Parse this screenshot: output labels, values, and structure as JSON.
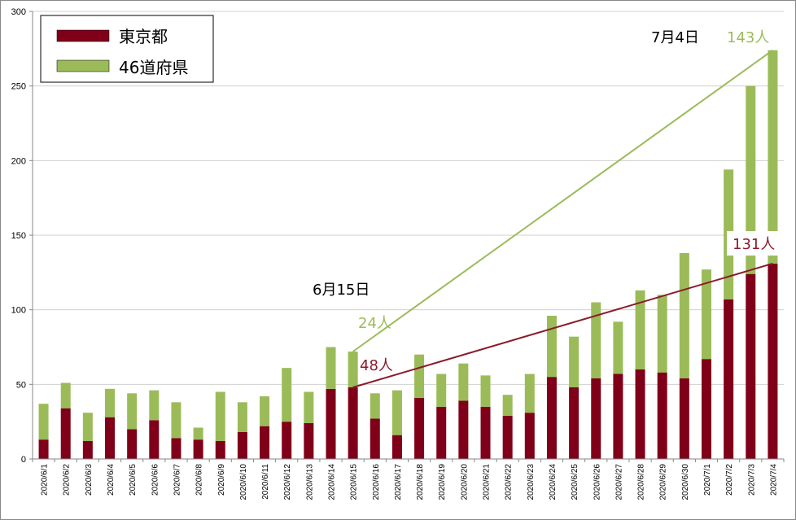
{
  "chart_data": {
    "type": "bar",
    "stacked": true,
    "title": "",
    "xlabel": "",
    "ylabel": "",
    "ylim": [
      0,
      300
    ],
    "yticks": [
      0,
      50,
      100,
      150,
      200,
      250,
      300
    ],
    "grid": "horizontal",
    "legend_position": "top-left",
    "categories": [
      "2020/6/1",
      "2020/6/2",
      "2020/6/3",
      "2020/6/4",
      "2020/6/5",
      "2020/6/6",
      "2020/6/7",
      "2020/6/8",
      "2020/6/9",
      "2020/6/10",
      "2020/6/11",
      "2020/6/12",
      "2020/6/13",
      "2020/6/14",
      "2020/6/15",
      "2020/6/16",
      "2020/6/17",
      "2020/6/18",
      "2020/6/19",
      "2020/6/20",
      "2020/6/21",
      "2020/6/22",
      "2020/6/23",
      "2020/6/24",
      "2020/6/25",
      "2020/6/26",
      "2020/6/27",
      "2020/6/28",
      "2020/6/29",
      "2020/6/30",
      "2020/7/1",
      "2020/7/2",
      "2020/7/3",
      "2020/7/4"
    ],
    "series": [
      {
        "name": "東京都",
        "color": "#7f0018",
        "values": [
          13,
          34,
          12,
          28,
          20,
          26,
          14,
          13,
          12,
          18,
          22,
          25,
          24,
          47,
          48,
          27,
          16,
          41,
          35,
          39,
          35,
          29,
          31,
          55,
          48,
          54,
          57,
          60,
          58,
          54,
          67,
          107,
          124,
          131
        ]
      },
      {
        "name": "46道府県",
        "color": "#9bbb59",
        "values": [
          24,
          17,
          19,
          19,
          24,
          20,
          24,
          8,
          33,
          20,
          20,
          36,
          21,
          28,
          24,
          17,
          30,
          29,
          22,
          25,
          21,
          14,
          26,
          41,
          34,
          51,
          35,
          53,
          52,
          84,
          60,
          87,
          126,
          143
        ]
      }
    ],
    "trend_lines": [
      {
        "series": "東京都",
        "color": "#8b1a2b",
        "from": {
          "x": "2020/6/15",
          "y": 48
        },
        "to": {
          "x": "2020/7/4",
          "y": 131
        }
      },
      {
        "series": "46道府県",
        "color": "#9bbb59",
        "from": {
          "x": "2020/6/15",
          "y": 72
        },
        "to": {
          "x": "2020/7/4",
          "y": 274
        }
      }
    ],
    "annotations": [
      {
        "id": "date-start",
        "text": "6月15日",
        "color": "#000000"
      },
      {
        "id": "green-start",
        "text": "24人",
        "color": "#9bbb59"
      },
      {
        "id": "red-start",
        "text": "48人",
        "color": "#8b1a2b"
      },
      {
        "id": "date-end",
        "text": "7月4日",
        "color": "#000000"
      },
      {
        "id": "green-end",
        "text": "143人",
        "color": "#9bbb59"
      },
      {
        "id": "red-end",
        "text": "131人",
        "color": "#8b1a2b"
      }
    ]
  }
}
